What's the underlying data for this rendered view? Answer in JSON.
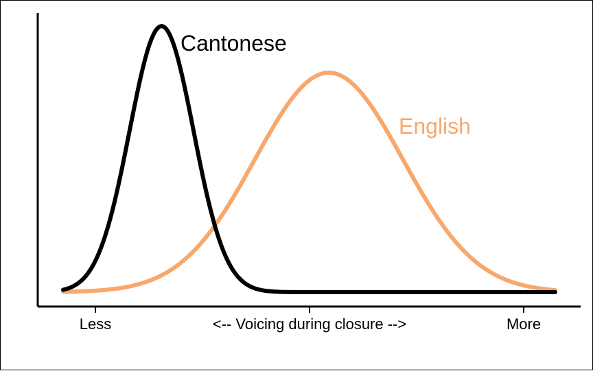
{
  "chart_data": {
    "type": "line",
    "title": "",
    "xlabel": "<-- Voicing during closure -->",
    "ylabel": "",
    "x_tick_labels": [
      "Less",
      "More"
    ],
    "xlim": [
      0,
      1
    ],
    "ylim": [
      0,
      1
    ],
    "grid": false,
    "series": [
      {
        "name": "Cantonese",
        "color": "#000000",
        "distribution": "normal",
        "mean": 0.2,
        "sd": 0.065,
        "peak": 0.97
      },
      {
        "name": "English",
        "color": "#F9A76C",
        "distribution": "normal",
        "mean": 0.54,
        "sd": 0.15,
        "peak": 0.8
      }
    ]
  }
}
